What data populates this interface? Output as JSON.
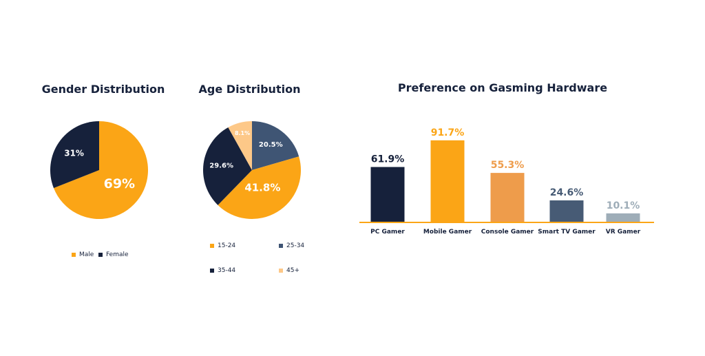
{
  "chart_data": [
    {
      "type": "pie",
      "title": "Gender Distribution",
      "slices": [
        {
          "label": "Male",
          "value": 69,
          "text": "69%",
          "color": "#fba516"
        },
        {
          "label": "Female",
          "value": 31,
          "text": "31%",
          "color": "#16213b"
        }
      ],
      "legend_position": "bottom"
    },
    {
      "type": "pie",
      "title": "Age Distribution",
      "slices": [
        {
          "label": "25-34",
          "value": 20.5,
          "text": "20.5%",
          "color": "#3f5574"
        },
        {
          "label": "15-24",
          "value": 41.8,
          "text": "41.8%",
          "color": "#fba516"
        },
        {
          "label": "35-44",
          "value": 29.6,
          "text": "29.6%",
          "color": "#16213b"
        },
        {
          "label": "45+",
          "value": 8.1,
          "text": "8.1%",
          "color": "#fdc888"
        }
      ],
      "legend": [
        "15-24",
        "25-34",
        "35-44",
        "45+"
      ],
      "legend_position": "bottom"
    },
    {
      "type": "bar",
      "title": "Preference on Gasming Hardware",
      "categories": [
        "PC Gamer",
        "Mobile Gamer",
        "Console Gamer",
        "Smart TV Gamer",
        "VR Gamer"
      ],
      "values": [
        61.9,
        91.7,
        55.3,
        24.6,
        10.1
      ],
      "value_labels": [
        "61.9%",
        "91.7%",
        "55.3%",
        "24.6%",
        "10.1%"
      ],
      "colors": [
        "#16213b",
        "#fba516",
        "#ee9c4b",
        "#475b75",
        "#9eadb8"
      ],
      "axis_color": "#fba516"
    }
  ]
}
